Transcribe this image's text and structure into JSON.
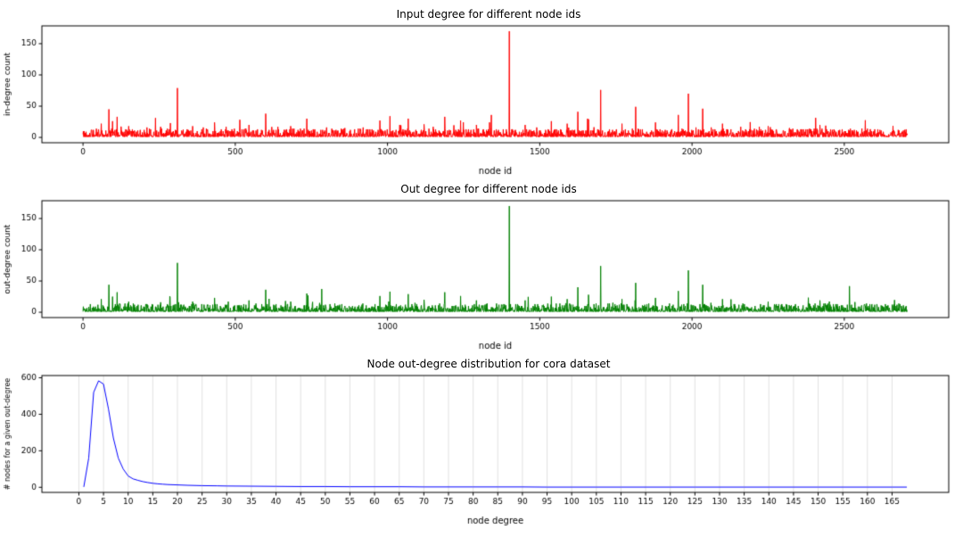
{
  "chart_data": [
    {
      "type": "line",
      "title": "Input degree for different node ids",
      "xlabel": "node id",
      "ylabel": "in-degree count",
      "color": "#ff0000",
      "xlim": [
        -135,
        2843
      ],
      "ylim": [
        -8.5,
        178.5
      ],
      "xticks": [
        0,
        500,
        1000,
        1500,
        2000,
        2500
      ],
      "yticks": [
        0,
        50,
        100,
        150
      ],
      "grid_x": false,
      "legend": null,
      "series": {
        "kind": "noisy-degree",
        "n_points": 2708,
        "seed": 42,
        "baseline_mean": 4,
        "noise_max": 13,
        "spikes": [
          [
            60,
            22
          ],
          [
            85,
            45
          ],
          [
            97,
            26
          ],
          [
            112,
            33
          ],
          [
            150,
            18
          ],
          [
            210,
            16
          ],
          [
            255,
            17
          ],
          [
            310,
            79
          ],
          [
            360,
            18
          ],
          [
            395,
            16
          ],
          [
            432,
            24
          ],
          [
            470,
            17
          ],
          [
            545,
            20
          ],
          [
            600,
            38
          ],
          [
            640,
            17
          ],
          [
            682,
            18
          ],
          [
            735,
            30
          ],
          [
            800,
            16
          ],
          [
            860,
            15
          ],
          [
            920,
            16
          ],
          [
            975,
            27
          ],
          [
            1008,
            34
          ],
          [
            1040,
            20
          ],
          [
            1068,
            30
          ],
          [
            1120,
            21
          ],
          [
            1150,
            17
          ],
          [
            1188,
            33
          ],
          [
            1240,
            27
          ],
          [
            1292,
            20
          ],
          [
            1340,
            17
          ],
          [
            1400,
            170
          ],
          [
            1452,
            20
          ],
          [
            1490,
            16
          ],
          [
            1538,
            26
          ],
          [
            1590,
            22
          ],
          [
            1625,
            41
          ],
          [
            1660,
            29
          ],
          [
            1700,
            76
          ],
          [
            1770,
            22
          ],
          [
            1815,
            49
          ],
          [
            1880,
            24
          ],
          [
            1955,
            36
          ],
          [
            1988,
            70
          ],
          [
            2035,
            46
          ],
          [
            2100,
            22
          ],
          [
            2160,
            17
          ],
          [
            2250,
            18
          ],
          [
            2320,
            15
          ],
          [
            2420,
            20
          ],
          [
            2520,
            14
          ],
          [
            2600,
            13
          ]
        ]
      }
    },
    {
      "type": "line",
      "title": "Out degree for different node ids",
      "xlabel": "node id",
      "ylabel": "out-degree count",
      "color": "#008000",
      "xlim": [
        -135,
        2843
      ],
      "ylim": [
        -8.5,
        178.5
      ],
      "xticks": [
        0,
        500,
        1000,
        1500,
        2000,
        2500
      ],
      "yticks": [
        0,
        50,
        100,
        150
      ],
      "grid_x": false,
      "legend": null,
      "series": {
        "kind": "noisy-degree",
        "n_points": 2708,
        "seed": 1337,
        "baseline_mean": 4,
        "noise_max": 13,
        "spikes": [
          [
            60,
            21
          ],
          [
            85,
            44
          ],
          [
            97,
            25
          ],
          [
            112,
            32
          ],
          [
            150,
            17
          ],
          [
            255,
            16
          ],
          [
            310,
            79
          ],
          [
            360,
            17
          ],
          [
            432,
            23
          ],
          [
            545,
            19
          ],
          [
            600,
            36
          ],
          [
            682,
            17
          ],
          [
            735,
            30
          ],
          [
            975,
            26
          ],
          [
            1008,
            33
          ],
          [
            1068,
            29
          ],
          [
            1120,
            20
          ],
          [
            1188,
            32
          ],
          [
            1240,
            26
          ],
          [
            1292,
            19
          ],
          [
            1400,
            170
          ],
          [
            1452,
            19
          ],
          [
            1538,
            25
          ],
          [
            1590,
            21
          ],
          [
            1625,
            40
          ],
          [
            1660,
            28
          ],
          [
            1700,
            74
          ],
          [
            1770,
            21
          ],
          [
            1815,
            47
          ],
          [
            1880,
            23
          ],
          [
            1955,
            34
          ],
          [
            1988,
            67
          ],
          [
            2035,
            44
          ],
          [
            2100,
            21
          ],
          [
            2250,
            17
          ],
          [
            2420,
            19
          ],
          [
            2600,
            12
          ]
        ]
      }
    },
    {
      "type": "line",
      "title": "Node out-degree distribution for cora dataset",
      "xlabel": "node degree",
      "ylabel": "# nodes for a given out-degree",
      "color": "#0000ff",
      "xlim": [
        -7.5,
        176.5
      ],
      "ylim": [
        -28,
        612
      ],
      "xticks": [
        0,
        5,
        10,
        15,
        20,
        25,
        30,
        35,
        40,
        45,
        50,
        55,
        60,
        65,
        70,
        75,
        80,
        85,
        90,
        95,
        100,
        105,
        110,
        115,
        120,
        125,
        130,
        135,
        140,
        145,
        150,
        155,
        160,
        165
      ],
      "yticks": [
        0,
        200,
        400,
        600
      ],
      "grid_x": true,
      "legend": null,
      "series": {
        "kind": "points",
        "points": [
          [
            1,
            2
          ],
          [
            2,
            160
          ],
          [
            3,
            520
          ],
          [
            4,
            583
          ],
          [
            5,
            565
          ],
          [
            6,
            430
          ],
          [
            7,
            270
          ],
          [
            8,
            160
          ],
          [
            9,
            100
          ],
          [
            10,
            62
          ],
          [
            11,
            46
          ],
          [
            12,
            38
          ],
          [
            13,
            31
          ],
          [
            14,
            26
          ],
          [
            15,
            22
          ],
          [
            16,
            19
          ],
          [
            17,
            17
          ],
          [
            18,
            15
          ],
          [
            20,
            13
          ],
          [
            22,
            11
          ],
          [
            25,
            9
          ],
          [
            28,
            8
          ],
          [
            30,
            7
          ],
          [
            35,
            6
          ],
          [
            40,
            5
          ],
          [
            45,
            4
          ],
          [
            50,
            4
          ],
          [
            55,
            3
          ],
          [
            60,
            3
          ],
          [
            65,
            3
          ],
          [
            70,
            2
          ],
          [
            75,
            2
          ],
          [
            80,
            2
          ],
          [
            85,
            2
          ],
          [
            90,
            2
          ],
          [
            95,
            1
          ],
          [
            100,
            1
          ],
          [
            105,
            1
          ],
          [
            110,
            1
          ],
          [
            115,
            1
          ],
          [
            120,
            1
          ],
          [
            125,
            1
          ],
          [
            130,
            1
          ],
          [
            135,
            1
          ],
          [
            140,
            1
          ],
          [
            145,
            1
          ],
          [
            150,
            1
          ],
          [
            155,
            1
          ],
          [
            160,
            1
          ],
          [
            165,
            1
          ],
          [
            168,
            1
          ]
        ]
      }
    }
  ]
}
